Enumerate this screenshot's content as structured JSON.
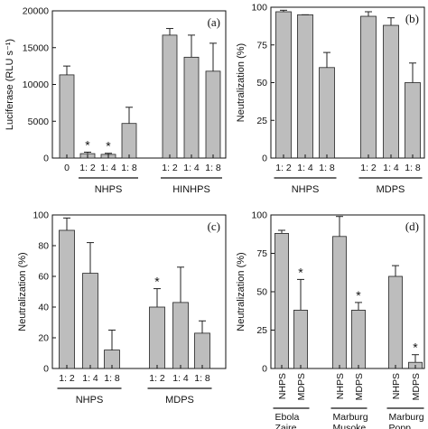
{
  "chart_data": [
    {
      "id": "a",
      "type": "bar",
      "panel_label": "(a)",
      "ylabel": "Luciferase (RLU s⁻¹)",
      "ylim": [
        0,
        20000
      ],
      "yticks": [
        0,
        5000,
        10000,
        15000,
        20000
      ],
      "categories": [
        "0",
        "1: 2",
        "1: 4",
        "1: 8",
        "1: 2",
        "1: 4",
        "1: 8"
      ],
      "values": [
        11300,
        600,
        500,
        4700,
        16700,
        13700,
        11800
      ],
      "errors": [
        1200,
        200,
        150,
        2200,
        900,
        3000,
        3800
      ],
      "stars": [
        false,
        true,
        true,
        false,
        false,
        false,
        false
      ],
      "groups": [
        {
          "label": "NHPS",
          "from": 1,
          "to": 3
        },
        {
          "label": "HINHPS",
          "from": 4,
          "to": 6
        }
      ]
    },
    {
      "id": "b",
      "type": "bar",
      "panel_label": "(b)",
      "ylabel": "Neutralization (%)",
      "ylim": [
        0,
        100
      ],
      "yticks": [
        0,
        25,
        50,
        75,
        100
      ],
      "categories": [
        "1: 2",
        "1: 4",
        "1: 8",
        "1: 2",
        "1: 4",
        "1: 8"
      ],
      "values": [
        97,
        95,
        60,
        94,
        88,
        50
      ],
      "errors": [
        1,
        0,
        10,
        3,
        5,
        13
      ],
      "stars": [
        false,
        false,
        false,
        false,
        false,
        false
      ],
      "groups": [
        {
          "label": "NHPS",
          "from": 0,
          "to": 2
        },
        {
          "label": "MDPS",
          "from": 3,
          "to": 5
        }
      ]
    },
    {
      "id": "c",
      "type": "bar",
      "panel_label": "(c)",
      "ylabel": "Neutralization (%)",
      "ylim": [
        0,
        100
      ],
      "yticks": [
        0,
        20,
        40,
        60,
        80,
        100
      ],
      "categories": [
        "1: 2",
        "1: 4",
        "1: 8",
        "1: 2",
        "1: 4",
        "1: 8"
      ],
      "values": [
        90,
        62,
        12,
        40,
        43,
        23
      ],
      "errors": [
        8,
        20,
        13,
        12,
        23,
        8
      ],
      "stars": [
        false,
        false,
        false,
        true,
        false,
        false
      ],
      "groups": [
        {
          "label": "NHPS",
          "from": 0,
          "to": 2
        },
        {
          "label": "MDPS",
          "from": 3,
          "to": 5
        }
      ]
    },
    {
      "id": "d",
      "type": "bar",
      "panel_label": "(d)",
      "ylabel": "Neutralization (%)",
      "ylim": [
        0,
        100
      ],
      "yticks": [
        0,
        25,
        50,
        75,
        100
      ],
      "categories": [
        "NHPS",
        "MDPS",
        "NHPS",
        "MDPS",
        "NHPS",
        "MDPS"
      ],
      "values": [
        88,
        38,
        86,
        38,
        60,
        4
      ],
      "errors": [
        2,
        20,
        13,
        5,
        7,
        5
      ],
      "stars": [
        false,
        true,
        false,
        true,
        false,
        true
      ],
      "groups": [
        {
          "label": "Ebola Zaire",
          "from": 0,
          "to": 1
        },
        {
          "label": "Marburg Musoke",
          "from": 2,
          "to": 3
        },
        {
          "label": "Marburg Popp",
          "from": 4,
          "to": 5
        }
      ]
    }
  ]
}
